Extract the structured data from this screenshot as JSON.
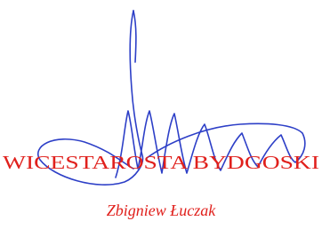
{
  "stamp": {
    "title": "WICESTAROSTA BYDGOSKI",
    "name": "Zbigniew Łuczak"
  }
}
